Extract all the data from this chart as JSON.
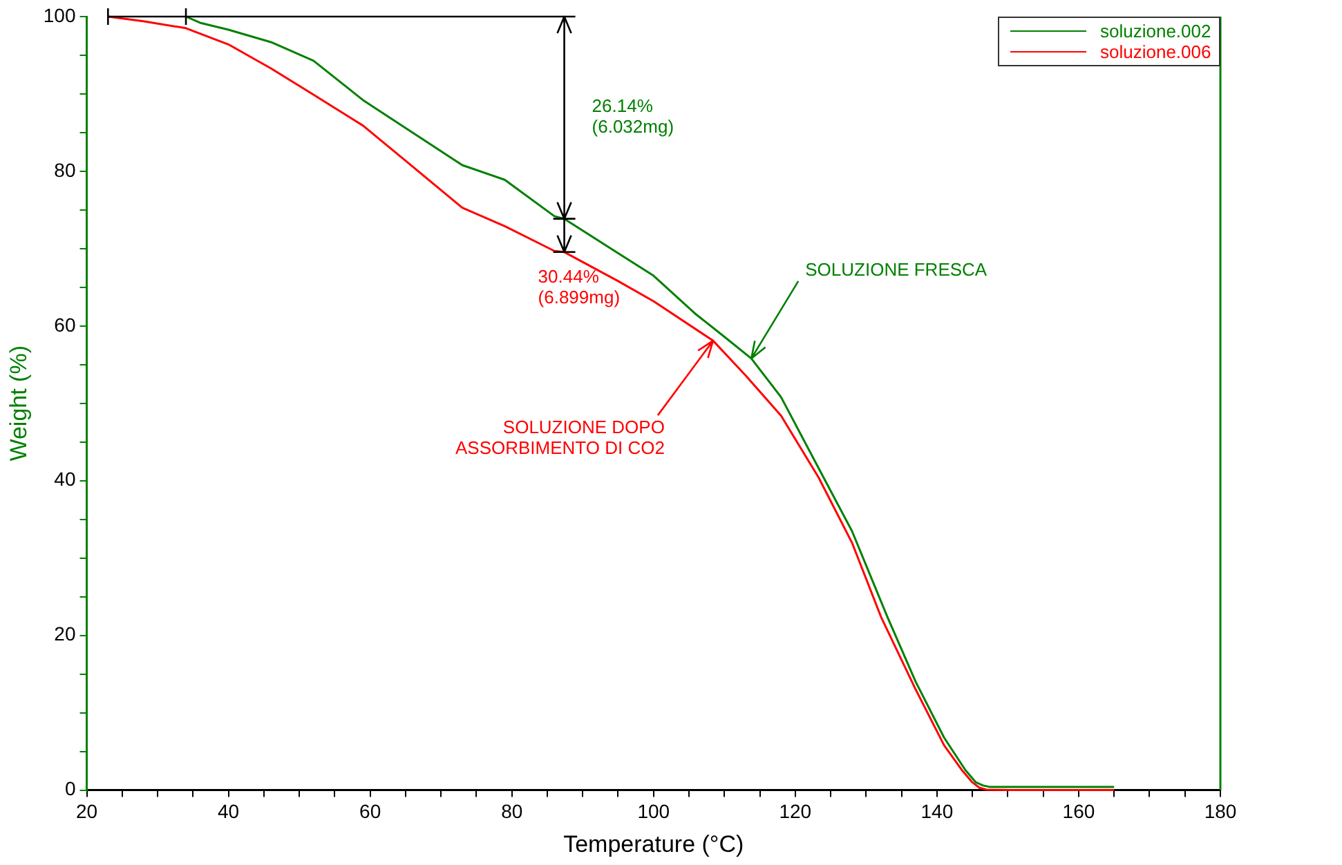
{
  "chart_data": {
    "type": "line",
    "xlabel": "Temperature (°C)",
    "ylabel": "Weight (%)",
    "xlim": [
      20,
      180
    ],
    "ylim": [
      0,
      100
    ],
    "xticks": [
      20,
      {
        "value": 25,
        "label": null
      },
      {
        "value": 30,
        "label": null
      },
      {
        "value": 35,
        "label": null
      },
      40,
      {
        "value": 45,
        "label": null
      },
      {
        "value": 50,
        "label": null
      },
      {
        "value": 55,
        "label": null
      },
      60,
      {
        "value": 65,
        "label": null
      },
      {
        "value": 70,
        "label": null
      },
      {
        "value": 75,
        "label": null
      },
      80,
      {
        "value": 85,
        "label": null
      },
      {
        "value": 90,
        "label": null
      },
      {
        "value": 95,
        "label": null
      },
      100,
      {
        "value": 105,
        "label": null
      },
      {
        "value": 110,
        "label": null
      },
      {
        "value": 115,
        "label": null
      },
      120,
      {
        "value": 125,
        "label": null
      },
      {
        "value": 130,
        "label": null
      },
      {
        "value": 135,
        "label": null
      },
      140,
      {
        "value": 145,
        "label": null
      },
      {
        "value": 150,
        "label": null
      },
      {
        "value": 155,
        "label": null
      },
      160,
      {
        "value": 165,
        "label": null
      },
      {
        "value": 170,
        "label": null
      },
      {
        "value": 175,
        "label": null
      },
      180
    ],
    "yticks": [
      0,
      {
        "value": 5,
        "label": null
      },
      {
        "value": 10,
        "label": null
      },
      {
        "value": 15,
        "label": null
      },
      20,
      {
        "value": 25,
        "label": null
      },
      {
        "value": 30,
        "label": null
      },
      {
        "value": 35,
        "label": null
      },
      40,
      {
        "value": 45,
        "label": null
      },
      {
        "value": 50,
        "label": null
      },
      {
        "value": 55,
        "label": null
      },
      60,
      {
        "value": 65,
        "label": null
      },
      {
        "value": 70,
        "label": null
      },
      {
        "value": 75,
        "label": null
      },
      80,
      {
        "value": 85,
        "label": null
      },
      {
        "value": 90,
        "label": null
      },
      {
        "value": 95,
        "label": null
      },
      100
    ],
    "legend": "top right",
    "marker": "none",
    "line_style": "solid",
    "series": [
      {
        "name": "soluzione.002",
        "color": "#008000",
        "x": [
          34,
          36,
          40,
          46,
          52,
          59,
          66,
          73,
          79,
          86,
          87.4,
          95,
          100,
          106,
          110,
          113.8,
          118,
          124,
          128,
          133,
          137,
          141,
          144,
          145.5,
          146.5,
          147.5,
          150,
          155,
          160,
          165
        ],
        "values": [
          100,
          99.2,
          98.3,
          96.7,
          94.3,
          89.2,
          85,
          80.8,
          78.9,
          74.2,
          73.86,
          69.4,
          66.5,
          61.5,
          58.6,
          55.8,
          50.8,
          40.4,
          33.5,
          22.4,
          14,
          6.8,
          2.6,
          1,
          0.6,
          0.4,
          0.4,
          0.4,
          0.4,
          0.4
        ]
      },
      {
        "name": "soluzione.006",
        "color": "#ff0000",
        "x": [
          23,
          28,
          34,
          40,
          46,
          52,
          59,
          66,
          73,
          79,
          86,
          87.4,
          95,
          100,
          108.4,
          113,
          118,
          123.3,
          128,
          132.1,
          137,
          141,
          143.5,
          145,
          146,
          147,
          150,
          155,
          160,
          165
        ],
        "values": [
          100,
          99.4,
          98.5,
          96.4,
          93.3,
          89.9,
          85.9,
          80.6,
          75.3,
          72.9,
          69.7,
          69.56,
          65.8,
          63.2,
          58.1,
          53.6,
          48.4,
          40.4,
          32,
          22.4,
          13,
          5.8,
          2.6,
          1,
          0.3,
          0.05,
          0,
          0,
          0,
          0
        ]
      }
    ],
    "annotations": [
      "26.14%\n(6.032mg)",
      {
        "text": "30.44%\n(6.899mg)",
        "x": 87.4,
        "y": 69.56
      },
      {
        "text": "SOLUZIONE FRESCA",
        "x": 113.8,
        "y": 55.8
      },
      {
        "text": "SOLUZIONE DOPO\n ASSORBIMENTO DI CO2",
        "x": 108.4,
        "y": 58.1
      }
    ]
  }
}
